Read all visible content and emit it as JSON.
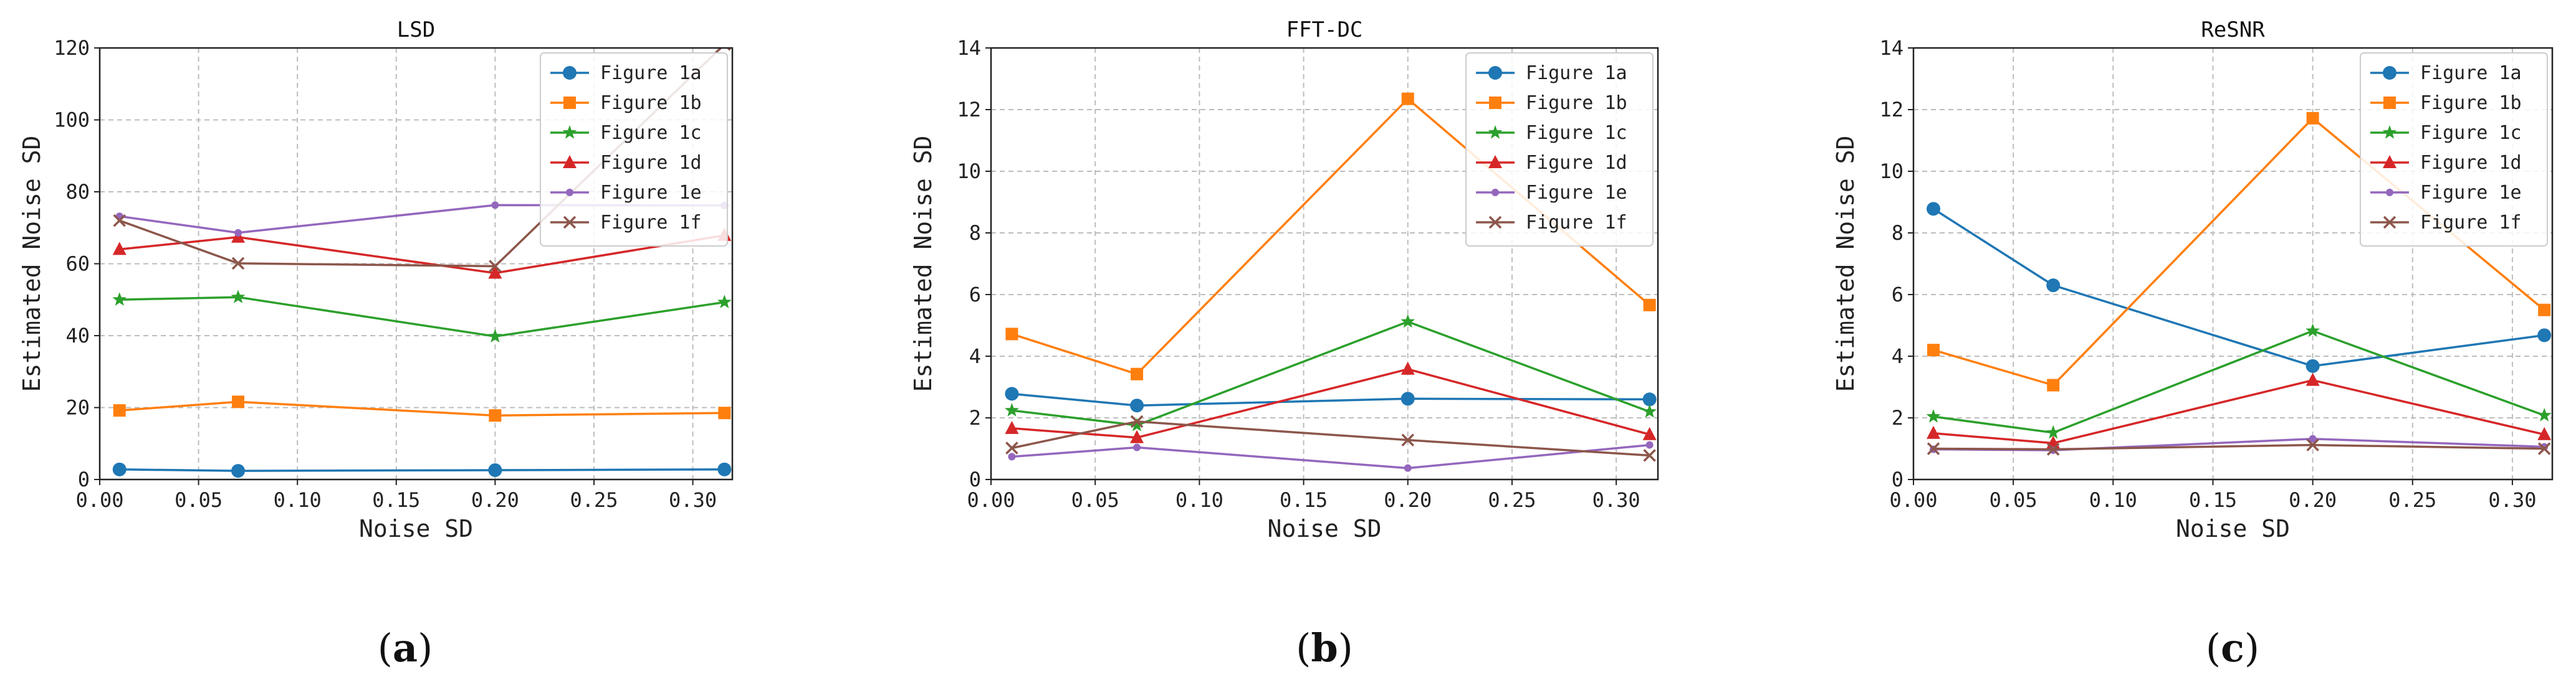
{
  "figure": {
    "colors": {
      "Figure 1a": "#1f77b4",
      "Figure 1b": "#ff7f0e",
      "Figure 1c": "#2ca02c",
      "Figure 1d": "#d62728",
      "Figure 1e": "#9467bd",
      "Figure 1f": "#8c564b"
    },
    "markers": {
      "Figure 1a": "circle",
      "Figure 1b": "square",
      "Figure 1c": "star",
      "Figure 1d": "triangle",
      "Figure 1e": "dot",
      "Figure 1f": "x"
    }
  },
  "chart_data": [
    {
      "type": "line",
      "panel_label": "a",
      "title": "LSD",
      "xlabel": "Noise SD",
      "ylabel": "Estimated Noise SD",
      "xlim": [
        0.0,
        0.32
      ],
      "ylim": [
        0,
        120
      ],
      "xticks": [
        "0.00",
        "0.05",
        "0.10",
        "0.15",
        "0.20",
        "0.25",
        "0.30"
      ],
      "yticks": [
        "0",
        "20",
        "40",
        "60",
        "80",
        "100",
        "120"
      ],
      "grid": true,
      "legend": "upper right",
      "x": [
        0.01,
        0.07,
        0.2,
        0.316
      ],
      "series": [
        {
          "name": "Figure 1a",
          "values": [
            2.8,
            2.4,
            2.6,
            2.8
          ]
        },
        {
          "name": "Figure 1b",
          "values": [
            19.2,
            21.6,
            17.8,
            18.5
          ]
        },
        {
          "name": "Figure 1c",
          "values": [
            50.0,
            50.7,
            39.8,
            49.3
          ]
        },
        {
          "name": "Figure 1d",
          "values": [
            64.0,
            67.4,
            57.4,
            67.9
          ]
        },
        {
          "name": "Figure 1e",
          "values": [
            73.2,
            68.6,
            76.3,
            76.2
          ]
        },
        {
          "name": "Figure 1f",
          "values": [
            72.0,
            60.1,
            59.3,
            121.0
          ]
        }
      ]
    },
    {
      "type": "line",
      "panel_label": "b",
      "title": "FFT-DC",
      "xlabel": "Noise SD",
      "ylabel": "Estimated Noise SD",
      "xlim": [
        0.0,
        0.32
      ],
      "ylim": [
        0,
        14
      ],
      "xticks": [
        "0.00",
        "0.05",
        "0.10",
        "0.15",
        "0.20",
        "0.25",
        "0.30"
      ],
      "yticks": [
        "0",
        "2",
        "4",
        "6",
        "8",
        "10",
        "12",
        "14"
      ],
      "grid": true,
      "legend": "upper right",
      "x": [
        0.01,
        0.07,
        0.2,
        0.316
      ],
      "series": [
        {
          "name": "Figure 1a",
          "values": [
            2.78,
            2.4,
            2.62,
            2.6
          ]
        },
        {
          "name": "Figure 1b",
          "values": [
            4.72,
            3.42,
            12.35,
            5.66
          ]
        },
        {
          "name": "Figure 1c",
          "values": [
            2.24,
            1.76,
            5.12,
            2.2
          ]
        },
        {
          "name": "Figure 1d",
          "values": [
            1.66,
            1.36,
            3.58,
            1.46
          ]
        },
        {
          "name": "Figure 1e",
          "values": [
            0.74,
            1.04,
            0.37,
            1.12
          ]
        },
        {
          "name": "Figure 1f",
          "values": [
            1.02,
            1.88,
            1.28,
            0.78
          ]
        }
      ]
    },
    {
      "type": "line",
      "panel_label": "c",
      "title": "ReSNR",
      "xlabel": "Noise SD",
      "ylabel": "Estimated Noise SD",
      "xlim": [
        0.0,
        0.32
      ],
      "ylim": [
        0,
        14
      ],
      "xticks": [
        "0.00",
        "0.05",
        "0.10",
        "0.15",
        "0.20",
        "0.25",
        "0.30"
      ],
      "yticks": [
        "0",
        "2",
        "4",
        "6",
        "8",
        "10",
        "12",
        "14"
      ],
      "grid": true,
      "legend": "upper right",
      "x": [
        0.01,
        0.07,
        0.2,
        0.316
      ],
      "series": [
        {
          "name": "Figure 1a",
          "values": [
            8.78,
            6.3,
            3.68,
            4.68
          ]
        },
        {
          "name": "Figure 1b",
          "values": [
            4.2,
            3.06,
            11.72,
            5.5
          ]
        },
        {
          "name": "Figure 1c",
          "values": [
            2.04,
            1.52,
            4.82,
            2.08
          ]
        },
        {
          "name": "Figure 1d",
          "values": [
            1.5,
            1.18,
            3.22,
            1.46
          ]
        },
        {
          "name": "Figure 1e",
          "values": [
            0.98,
            0.95,
            1.32,
            1.06
          ]
        },
        {
          "name": "Figure 1f",
          "values": [
            1.0,
            0.98,
            1.12,
            1.0
          ]
        }
      ]
    }
  ]
}
